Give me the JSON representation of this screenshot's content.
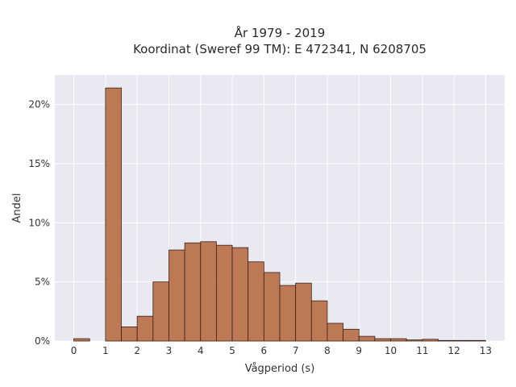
{
  "chart_data": {
    "type": "bar",
    "title_line1": "År 1979 - 2019",
    "title_line2": "Koordinat (Sweref 99 TM): E 472341, N 6208705",
    "xlabel": "Vågperiod (s)",
    "ylabel": "Andel",
    "bin_width": 0.5,
    "bin_starts": [
      0,
      1,
      1.5,
      2,
      2.5,
      3,
      3.5,
      4,
      4.5,
      5,
      5.5,
      6,
      6.5,
      7,
      7.5,
      8,
      8.5,
      9,
      9.5,
      10,
      10.5,
      11,
      11.5,
      12,
      12.5
    ],
    "values": [
      0.2,
      21.4,
      1.2,
      2.1,
      5.0,
      7.7,
      8.3,
      8.4,
      8.1,
      7.9,
      6.7,
      5.8,
      4.7,
      4.9,
      3.4,
      1.5,
      1.0,
      0.4,
      0.2,
      0.2,
      0.1,
      0.15,
      0.05,
      0.05,
      0.05
    ],
    "xlim": [
      -0.6,
      13.6
    ],
    "ylim": [
      0,
      22.5
    ],
    "xticks": [
      0,
      1,
      2,
      3,
      4,
      5,
      6,
      7,
      8,
      9,
      10,
      11,
      12,
      13
    ],
    "xtick_labels": [
      "0",
      "1",
      "2",
      "3",
      "4",
      "5",
      "6",
      "7",
      "8",
      "9",
      "10",
      "11",
      "12",
      "13"
    ],
    "yticks": [
      0,
      5,
      10,
      15,
      20
    ],
    "ytick_labels": [
      "0%",
      "5%",
      "10%",
      "15%",
      "20%"
    ],
    "grid": true,
    "colors": {
      "bar": "#b5643a",
      "plot_background": "#e8e9f1"
    }
  }
}
